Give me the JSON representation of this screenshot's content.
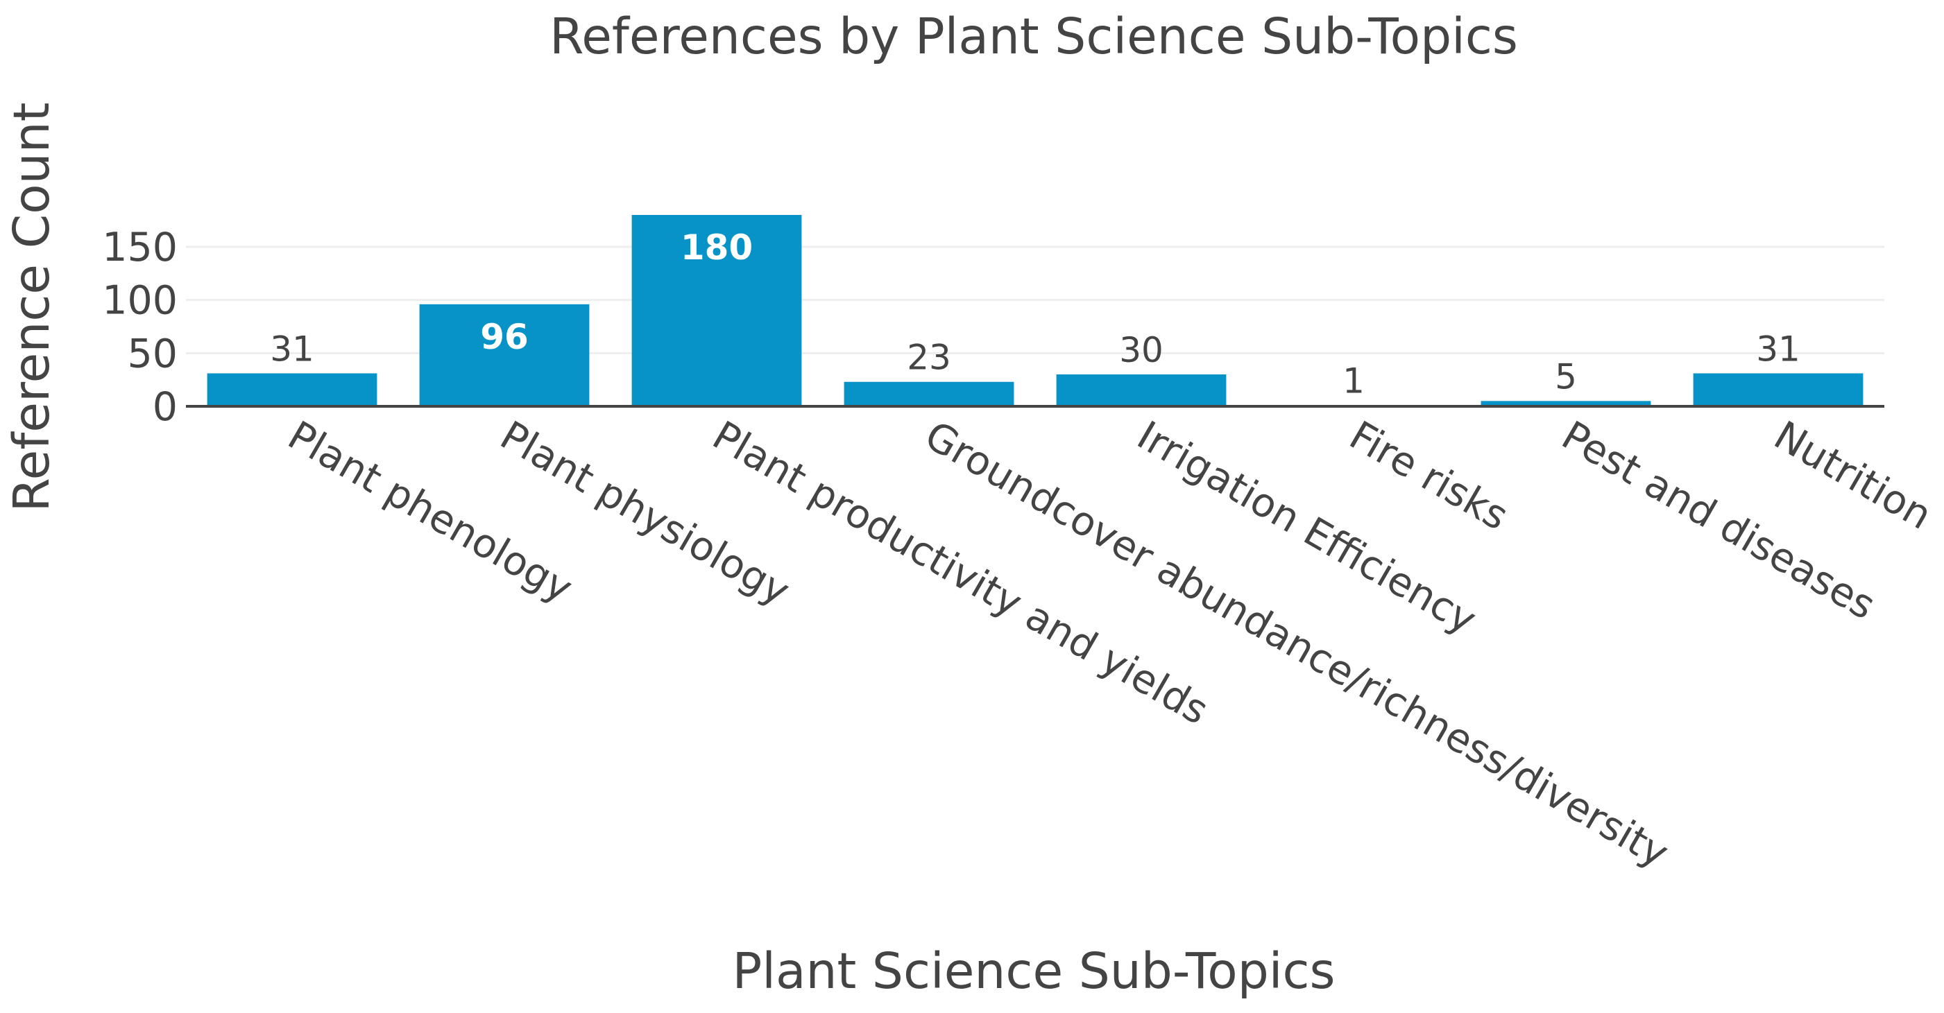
{
  "chart_data": {
    "type": "bar",
    "title": "References by Plant Science Sub-Topics",
    "xlabel": "Plant Science Sub-Topics",
    "ylabel": "Reference Count",
    "categories": [
      "Plant phenology",
      "Plant physiology",
      "Plant productivity and yields",
      "Groundcover abundance/richness/diversity",
      "Irrigation Efficiency",
      "Fire risks",
      "Pest and diseases",
      "Nutrition"
    ],
    "values": [
      31,
      96,
      180,
      23,
      30,
      1,
      5,
      31
    ],
    "yticks": [
      0,
      50,
      100,
      150
    ],
    "ylim": [
      0,
      180
    ],
    "grid": true,
    "legend": "none",
    "bar_color": "#0793c7"
  }
}
